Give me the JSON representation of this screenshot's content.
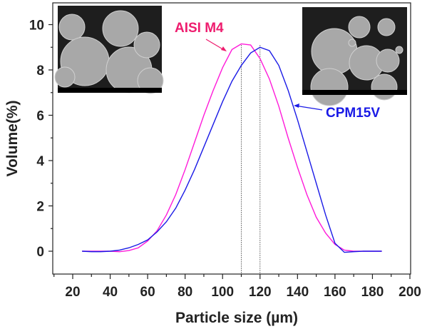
{
  "chart_data": {
    "type": "line",
    "title": "",
    "xlabel": "Particle size (µm)",
    "ylabel": "Volume(%)",
    "xlim": [
      10,
      200
    ],
    "ylim": [
      -0.8,
      10.8
    ],
    "xticks": [
      20,
      40,
      60,
      80,
      100,
      120,
      140,
      160,
      180,
      200
    ],
    "yticks": [
      0,
      2,
      4,
      6,
      8,
      10
    ],
    "grid": false,
    "x": [
      25,
      30,
      35,
      40,
      45,
      50,
      55,
      60,
      65,
      70,
      75,
      80,
      85,
      90,
      95,
      100,
      105,
      110,
      115,
      120,
      125,
      130,
      135,
      140,
      145,
      150,
      155,
      160,
      165,
      170,
      175,
      180,
      185
    ],
    "series": [
      {
        "name": "AISI M4",
        "color": "#ff1ad9",
        "values": [
          0,
          0,
          0,
          0,
          -0.02,
          0.03,
          0.15,
          0.45,
          0.9,
          1.6,
          2.5,
          3.6,
          4.8,
          6.0,
          7.1,
          8.1,
          8.9,
          9.15,
          9.1,
          8.5,
          7.6,
          6.4,
          5.0,
          3.7,
          2.5,
          1.5,
          0.8,
          0.3,
          0.05,
          0,
          0,
          0,
          0
        ]
      },
      {
        "name": "CPM15V",
        "color": "#1a1ae6",
        "values": [
          0,
          -0.02,
          -0.02,
          0,
          0.05,
          0.15,
          0.3,
          0.5,
          0.85,
          1.3,
          1.9,
          2.7,
          3.6,
          4.6,
          5.6,
          6.6,
          7.5,
          8.2,
          8.75,
          9.0,
          8.85,
          8.2,
          7.1,
          5.8,
          4.4,
          3.0,
          1.6,
          0.35,
          -0.05,
          -0.02,
          0,
          0,
          0
        ]
      }
    ],
    "reference_lines_x": [
      110,
      120
    ],
    "annotations": [
      {
        "text": "AISI M4",
        "color": "#ee1c6e",
        "points_to_series": "AISI M4"
      },
      {
        "text": "CPM15V",
        "color": "#1a1ae6",
        "points_to_series": "CPM15V"
      }
    ],
    "insets": [
      "SEM image of AISI M4 powder",
      "SEM image of CPM15V powder"
    ]
  }
}
